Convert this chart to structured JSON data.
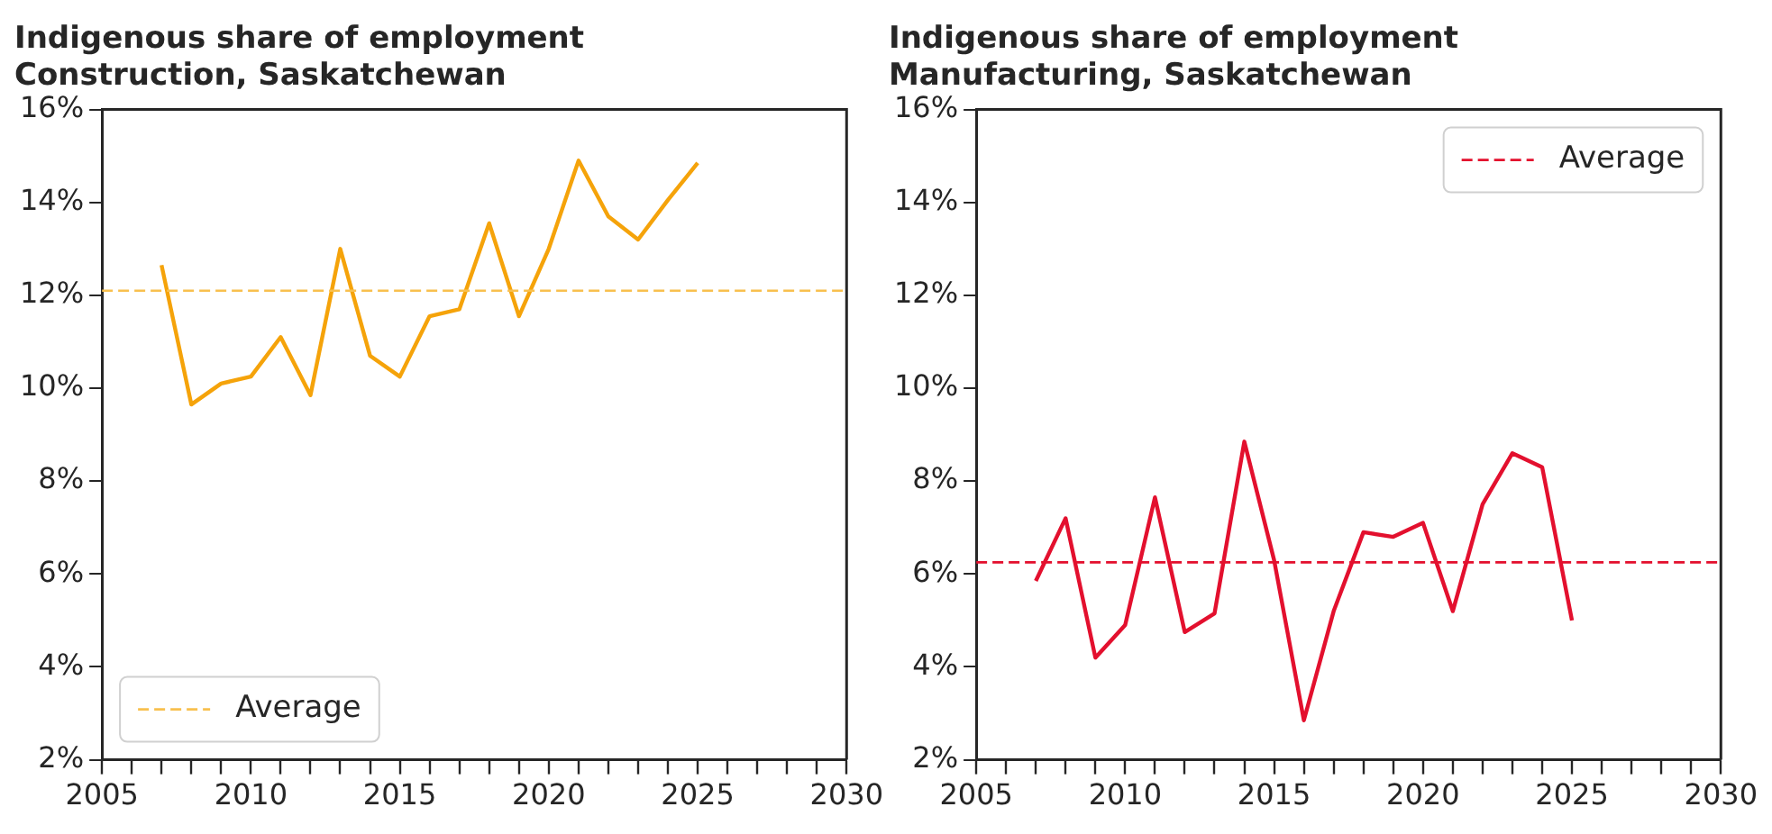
{
  "chart_data": [
    {
      "type": "line",
      "title": "Indigenous share of employment\nConstruction, Saskatchewan",
      "x": [
        2007,
        2008,
        2009,
        2010,
        2011,
        2012,
        2013,
        2014,
        2015,
        2016,
        2017,
        2018,
        2019,
        2020,
        2021,
        2022,
        2023,
        2024,
        2025
      ],
      "series": [
        {
          "color": "#f5a30a",
          "values": [
            12.65,
            9.65,
            10.1,
            10.25,
            11.1,
            9.85,
            13.0,
            10.7,
            10.25,
            11.55,
            11.7,
            13.55,
            11.55,
            13.0,
            14.9,
            13.7,
            13.2,
            14.05,
            14.85
          ]
        }
      ],
      "ref_lines": [
        {
          "axis": "y",
          "value": 12.1,
          "label": "Average",
          "color": "#f8c04e",
          "line_style": "dashed"
        }
      ],
      "xlim": [
        2005,
        2030
      ],
      "xticks": [
        2005,
        {
          "value": 2006,
          "label": null
        },
        {
          "value": 2007,
          "label": null
        },
        {
          "value": 2008,
          "label": null
        },
        {
          "value": 2009,
          "label": null
        },
        2010,
        {
          "value": 2011,
          "label": null
        },
        {
          "value": 2012,
          "label": null
        },
        {
          "value": 2013,
          "label": null
        },
        {
          "value": 2014,
          "label": null
        },
        2015,
        {
          "value": 2016,
          "label": null
        },
        {
          "value": 2017,
          "label": null
        },
        {
          "value": 2018,
          "label": null
        },
        {
          "value": 2019,
          "label": null
        },
        2020,
        {
          "value": 2021,
          "label": null
        },
        {
          "value": 2022,
          "label": null
        },
        {
          "value": 2023,
          "label": null
        },
        {
          "value": 2024,
          "label": null
        },
        2025,
        {
          "value": 2026,
          "label": null
        },
        {
          "value": 2027,
          "label": null
        },
        {
          "value": 2028,
          "label": null
        },
        {
          "value": 2029,
          "label": null
        },
        2030
      ],
      "ylim": [
        2,
        16
      ],
      "yticks": [
        {
          "value": 2,
          "label": "2%"
        },
        {
          "value": 4,
          "label": "4%"
        },
        {
          "value": 6,
          "label": "6%"
        },
        {
          "value": 8,
          "label": "8%"
        },
        {
          "value": 10,
          "label": "10%"
        },
        {
          "value": 12,
          "label": "12%"
        },
        {
          "value": 14,
          "label": "14%"
        },
        {
          "value": 16,
          "label": "16%"
        }
      ],
      "grid": false,
      "legend": "bottom left",
      "marker": "none",
      "line_style": "solid"
    },
    {
      "type": "line",
      "title": "Indigenous share of employment\nManufacturing, Saskatchewan",
      "x": [
        2007,
        2008,
        2009,
        2010,
        2011,
        2012,
        2013,
        2014,
        2015,
        2016,
        2017,
        2018,
        2019,
        2020,
        2021,
        2022,
        2023,
        2024,
        2025
      ],
      "series": [
        {
          "color": "#e3102e",
          "values": [
            5.85,
            7.2,
            4.2,
            4.9,
            7.65,
            4.75,
            5.15,
            8.85,
            6.3,
            2.85,
            5.2,
            6.9,
            6.8,
            7.1,
            5.2,
            7.5,
            8.6,
            8.3,
            5.0
          ]
        }
      ],
      "ref_lines": [
        {
          "axis": "y",
          "value": 6.25,
          "label": "Average",
          "color": "#e3102e",
          "line_style": "dashed"
        }
      ],
      "xlim": [
        2005,
        2030
      ],
      "xticks": [
        2005,
        {
          "value": 2006,
          "label": null
        },
        {
          "value": 2007,
          "label": null
        },
        {
          "value": 2008,
          "label": null
        },
        {
          "value": 2009,
          "label": null
        },
        2010,
        {
          "value": 2011,
          "label": null
        },
        {
          "value": 2012,
          "label": null
        },
        {
          "value": 2013,
          "label": null
        },
        {
          "value": 2014,
          "label": null
        },
        2015,
        {
          "value": 2016,
          "label": null
        },
        {
          "value": 2017,
          "label": null
        },
        {
          "value": 2018,
          "label": null
        },
        {
          "value": 2019,
          "label": null
        },
        2020,
        {
          "value": 2021,
          "label": null
        },
        {
          "value": 2022,
          "label": null
        },
        {
          "value": 2023,
          "label": null
        },
        {
          "value": 2024,
          "label": null
        },
        2025,
        {
          "value": 2026,
          "label": null
        },
        {
          "value": 2027,
          "label": null
        },
        {
          "value": 2028,
          "label": null
        },
        {
          "value": 2029,
          "label": null
        },
        2030
      ],
      "ylim": [
        2,
        16
      ],
      "yticks": [
        {
          "value": 2,
          "label": "2%"
        },
        {
          "value": 4,
          "label": "4%"
        },
        {
          "value": 6,
          "label": "6%"
        },
        {
          "value": 8,
          "label": "8%"
        },
        {
          "value": 10,
          "label": "10%"
        },
        {
          "value": 12,
          "label": "12%"
        },
        {
          "value": 14,
          "label": "14%"
        },
        {
          "value": 16,
          "label": "16%"
        }
      ],
      "grid": false,
      "legend": "top right",
      "marker": "none",
      "line_style": "solid"
    }
  ]
}
